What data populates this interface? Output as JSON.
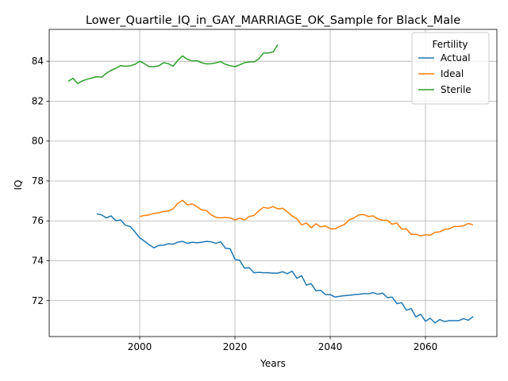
{
  "chart_data": {
    "type": "line",
    "title": "Lower_Quartile_IQ_in_GAY_MARRIAGE_OK_Sample for Black_Male",
    "xlabel": "Years",
    "ylabel": "IQ",
    "xlim": [
      1981,
      2075
    ],
    "ylim": [
      70.2,
      85.6
    ],
    "xticks": [
      2000,
      2020,
      2040,
      2060
    ],
    "yticks": [
      72,
      74,
      76,
      78,
      80,
      82,
      84
    ],
    "grid": true,
    "legend": {
      "title": "Fertility",
      "placement": "top-right"
    },
    "series": [
      {
        "name": "Actual",
        "color": "#1f77b4",
        "x": [
          1991,
          1992,
          1993,
          1994,
          1995,
          1996,
          1997,
          1998,
          1999,
          2000,
          2001,
          2002,
          2003,
          2004,
          2005,
          2006,
          2007,
          2008,
          2009,
          2010,
          2011,
          2012,
          2013,
          2014,
          2015,
          2016,
          2017,
          2018,
          2019,
          2020,
          2021,
          2022,
          2023,
          2024,
          2025,
          2026,
          2027,
          2028,
          2029,
          2030,
          2031,
          2032,
          2033,
          2034,
          2035,
          2036,
          2037,
          2038,
          2039,
          2040,
          2041,
          2042,
          2043,
          2044,
          2045,
          2046,
          2047,
          2048,
          2049,
          2050,
          2051,
          2052,
          2053,
          2054,
          2055,
          2056,
          2057,
          2058,
          2059,
          2060,
          2061,
          2062,
          2063,
          2064,
          2065,
          2066,
          2067,
          2068,
          2069,
          2070
        ],
        "y": [
          76.35,
          76.3,
          76.15,
          76.25,
          76.0,
          76.05,
          75.78,
          75.72,
          75.45,
          75.15,
          74.98,
          74.8,
          74.65,
          74.77,
          74.78,
          74.85,
          74.83,
          74.93,
          74.97,
          74.87,
          74.93,
          74.9,
          74.93,
          74.97,
          74.95,
          74.87,
          74.95,
          74.63,
          74.6,
          74.07,
          74.02,
          73.63,
          73.65,
          73.4,
          73.42,
          73.4,
          73.4,
          73.38,
          73.38,
          73.45,
          73.35,
          73.48,
          73.12,
          73.25,
          72.78,
          72.85,
          72.5,
          72.52,
          72.3,
          72.3,
          72.18,
          72.22,
          72.25,
          72.27,
          72.3,
          72.32,
          72.35,
          72.35,
          72.4,
          72.32,
          72.38,
          72.15,
          72.18,
          71.85,
          71.9,
          71.52,
          71.6,
          71.18,
          71.32,
          70.97,
          71.12,
          70.88,
          71.05,
          70.95,
          71.0,
          71.0,
          71.0,
          71.1,
          71.02,
          71.2
        ]
      },
      {
        "name": "Ideal",
        "color": "#ff7f0e",
        "x": [
          2000,
          2001,
          2002,
          2003,
          2004,
          2005,
          2006,
          2007,
          2008,
          2009,
          2010,
          2011,
          2012,
          2013,
          2014,
          2015,
          2016,
          2017,
          2018,
          2019,
          2020,
          2021,
          2022,
          2023,
          2024,
          2025,
          2026,
          2027,
          2028,
          2029,
          2030,
          2031,
          2032,
          2033,
          2034,
          2035,
          2036,
          2037,
          2038,
          2039,
          2040,
          2041,
          2042,
          2043,
          2044,
          2045,
          2046,
          2047,
          2048,
          2049,
          2050,
          2051,
          2052,
          2053,
          2054,
          2055,
          2056,
          2057,
          2058,
          2059,
          2060,
          2061,
          2062,
          2063,
          2064,
          2065,
          2066,
          2067,
          2068,
          2069,
          2070
        ],
        "y": [
          76.22,
          76.27,
          76.3,
          76.38,
          76.4,
          76.47,
          76.5,
          76.6,
          76.88,
          77.03,
          76.8,
          76.85,
          76.72,
          76.55,
          76.52,
          76.3,
          76.18,
          76.15,
          76.17,
          76.15,
          76.05,
          76.13,
          76.05,
          76.22,
          76.27,
          76.5,
          76.68,
          76.63,
          76.72,
          76.6,
          76.63,
          76.45,
          76.25,
          76.1,
          75.8,
          75.9,
          75.65,
          75.85,
          75.7,
          75.75,
          75.6,
          75.6,
          75.72,
          75.82,
          76.05,
          76.15,
          76.3,
          76.32,
          76.22,
          76.25,
          76.1,
          76.03,
          76.03,
          75.83,
          75.9,
          75.58,
          75.6,
          75.32,
          75.33,
          75.25,
          75.3,
          75.28,
          75.43,
          75.45,
          75.57,
          75.6,
          75.72,
          75.72,
          75.75,
          75.87,
          75.8
        ]
      },
      {
        "name": "Sterile",
        "color": "#2ca02c",
        "x": [
          1985,
          1986,
          1987,
          1988,
          1989,
          1990,
          1991,
          1992,
          1993,
          1994,
          1995,
          1996,
          1997,
          1998,
          1999,
          2000,
          2001,
          2002,
          2003,
          2004,
          2005,
          2006,
          2007,
          2008,
          2009,
          2010,
          2011,
          2012,
          2013,
          2014,
          2015,
          2016,
          2017,
          2018,
          2019,
          2020,
          2021,
          2022,
          2023,
          2024,
          2025,
          2026,
          2027,
          2028,
          2029
        ],
        "y": [
          83.0,
          83.15,
          82.88,
          83.02,
          83.1,
          83.17,
          83.23,
          83.2,
          83.4,
          83.55,
          83.65,
          83.78,
          83.75,
          83.77,
          83.85,
          84.0,
          83.88,
          83.73,
          83.73,
          83.77,
          83.93,
          83.88,
          83.75,
          84.05,
          84.27,
          84.1,
          84.02,
          84.03,
          83.93,
          83.87,
          83.88,
          83.92,
          83.98,
          83.85,
          83.78,
          83.73,
          83.82,
          83.93,
          83.97,
          83.97,
          84.12,
          84.42,
          84.42,
          84.47,
          84.83
        ]
      }
    ]
  }
}
